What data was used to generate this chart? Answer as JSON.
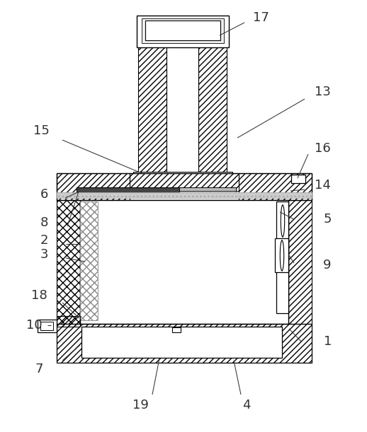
{
  "fig_width": 5.18,
  "fig_height": 6.11,
  "dpi": 100,
  "bg": "#ffffff",
  "lc": "#000000",
  "gray1": "#888888",
  "gray2": "#bbbbbb",
  "gray3": "#444444",
  "gray4": "#cccccc",
  "gray5": "#eeeeee"
}
